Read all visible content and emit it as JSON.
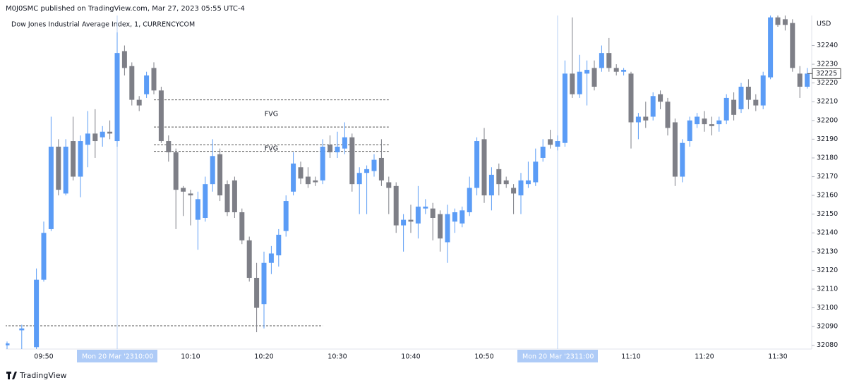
{
  "chart_data": {
    "type": "candlestick",
    "header": "M0J0SMC published on TradingView.com, Mar 27, 2023 05:55 UTC-4",
    "title": "Dow Jones Industrial Average Index, 1, CURRENCYCOM",
    "currency": "USD",
    "footer": "TradingView",
    "up_color": "#5b9cf6",
    "down_color": "#7e7f87",
    "x": [
      "09:45",
      "09:47",
      "09:49",
      "09:50",
      "09:51",
      "09:52",
      "09:53",
      "09:54",
      "09:55",
      "09:56",
      "09:57",
      "09:58",
      "09:59",
      "10:00",
      "10:01",
      "10:02",
      "10:03",
      "10:04",
      "10:05",
      "10:06",
      "10:07",
      "10:08",
      "10:09",
      "10:10",
      "10:11",
      "10:12",
      "10:13",
      "10:14",
      "10:15",
      "10:16",
      "10:17",
      "10:18",
      "10:19",
      "10:20",
      "10:21",
      "10:22",
      "10:23",
      "10:24",
      "10:25",
      "10:26",
      "10:27",
      "10:28",
      "10:29",
      "10:30",
      "10:31",
      "10:32",
      "10:33",
      "10:34",
      "10:35",
      "10:36",
      "10:37",
      "10:38",
      "10:39",
      "10:40",
      "10:41",
      "10:42",
      "10:43",
      "10:44",
      "10:45",
      "10:46",
      "10:47",
      "10:48",
      "10:49",
      "10:50",
      "10:51",
      "10:52",
      "10:53",
      "10:54",
      "10:55",
      "10:56",
      "10:57",
      "10:58",
      "10:59",
      "11:00",
      "11:01",
      "11:02",
      "11:03",
      "11:04",
      "11:05",
      "11:06",
      "11:07",
      "11:08",
      "11:09",
      "11:10",
      "11:11",
      "11:12",
      "11:13",
      "11:14",
      "11:15",
      "11:16",
      "11:17",
      "11:18",
      "11:19",
      "11:20",
      "11:21",
      "11:22",
      "11:23",
      "11:24",
      "11:25",
      "11:26",
      "11:27",
      "11:28",
      "11:29",
      "11:30",
      "11:31",
      "11:32",
      "11:33",
      "11:34"
    ],
    "open": [
      32080,
      32088,
      32079,
      32115,
      32142,
      32186,
      32161,
      32189,
      32170,
      32187,
      32193,
      32191,
      32194,
      32189,
      32237,
      32229,
      32211,
      32214,
      32228,
      32216,
      32189,
      32183,
      32164,
      32161,
      32147,
      32148,
      32166,
      32182,
      32166,
      32168,
      32151,
      32136,
      32116,
      32102,
      32124,
      32128,
      32141,
      32162,
      32175,
      32170,
      32168,
      32168,
      32187,
      32183,
      32185,
      32191,
      32166,
      32172,
      32173,
      32180,
      32167,
      32165,
      32144,
      32147,
      32145,
      32153,
      32153,
      32150,
      32135,
      32146,
      32145,
      32151,
      32164,
      32190,
      32160,
      32174,
      32168,
      32164,
      32160,
      32166,
      32167,
      32180,
      32190,
      32186,
      32188,
      32225,
      32214,
      32225,
      32228,
      32228,
      32236,
      32228,
      32226,
      32225,
      32199,
      32202,
      32202,
      32214,
      32210,
      32199,
      32170,
      32189,
      32198,
      32201,
      32198,
      32198,
      32200,
      32211,
      32206,
      32218,
      32211,
      32208,
      32223,
      32255,
      32254,
      32252,
      32225,
      32218
    ],
    "high": [
      32082,
      32091,
      32121,
      32146,
      32202,
      32190,
      32190,
      32202,
      32192,
      32205,
      32206,
      32197,
      32200,
      32247,
      32240,
      32231,
      32213,
      32226,
      32231,
      32218,
      32192,
      32185,
      32165,
      32163,
      32162,
      32170,
      32190,
      32185,
      32168,
      32170,
      32153,
      32138,
      32124,
      32130,
      32133,
      32142,
      32160,
      32183,
      32178,
      32175,
      32170,
      32190,
      32192,
      32194,
      32199,
      32193,
      32175,
      32176,
      32182,
      32190,
      32170,
      32167,
      32150,
      32155,
      32165,
      32158,
      32156,
      32152,
      32155,
      32153,
      32154,
      32170,
      32191,
      32196,
      32175,
      32177,
      32170,
      32166,
      32172,
      32178,
      32185,
      32190,
      32195,
      32192,
      32232,
      32255,
      32235,
      32232,
      32232,
      32240,
      32244,
      32230,
      32228,
      32226,
      32204,
      32210,
      32215,
      32216,
      32212,
      32201,
      32190,
      32202,
      32204,
      32205,
      32202,
      32202,
      32214,
      32215,
      32220,
      32222,
      32214,
      32226,
      32258,
      32258,
      32257,
      32254,
      32229,
      32228
    ],
    "low": [
      32078,
      32078,
      32076,
      32114,
      32141,
      32160,
      32160,
      32168,
      32159,
      32175,
      32180,
      32186,
      32190,
      32186,
      32224,
      32208,
      32205,
      32212,
      32214,
      32188,
      32178,
      32142,
      32149,
      32144,
      32131,
      32146,
      32162,
      32157,
      32149,
      32148,
      32134,
      32114,
      32087,
      32089,
      32118,
      32122,
      32138,
      32160,
      32166,
      32164,
      32165,
      32166,
      32180,
      32180,
      32182,
      32162,
      32150,
      32150,
      32170,
      32165,
      32150,
      32140,
      32130,
      32140,
      32137,
      32150,
      32136,
      32130,
      32124,
      32140,
      32143,
      32149,
      32160,
      32156,
      32152,
      32160,
      32164,
      32150,
      32150,
      32164,
      32165,
      32178,
      32185,
      32184,
      32186,
      32212,
      32212,
      32208,
      32216,
      32226,
      32226,
      32224,
      32224,
      32185,
      32190,
      32196,
      32200,
      32206,
      32192,
      32165,
      32167,
      32186,
      32196,
      32194,
      32192,
      32194,
      32198,
      32200,
      32204,
      32206,
      32205,
      32206,
      32222,
      32250,
      32248,
      32226,
      32212,
      32217
    ],
    "close": [
      32081,
      32089,
      32115,
      32140,
      32186,
      32163,
      32186,
      32170,
      32189,
      32193,
      32189,
      32194,
      32193,
      32236,
      32228,
      32211,
      32208,
      32224,
      32216,
      32189,
      32183,
      32163,
      32162,
      32160,
      32158,
      32166,
      32181,
      32160,
      32151,
      32151,
      32136,
      32116,
      32100,
      32124,
      32129,
      32139,
      32157,
      32177,
      32169,
      32166,
      32167,
      32186,
      32183,
      32186,
      32191,
      32166,
      32172,
      32174,
      32179,
      32168,
      32164,
      32144,
      32147,
      32146,
      32154,
      32154,
      32148,
      32137,
      32150,
      32151,
      32152,
      32164,
      32189,
      32160,
      32171,
      32166,
      32166,
      32161,
      32168,
      32168,
      32178,
      32186,
      32187,
      32189,
      32225,
      32214,
      32226,
      32227,
      32218,
      32236,
      32228,
      32226,
      32227,
      32199,
      32202,
      32200,
      32213,
      32210,
      32196,
      32170,
      32188,
      32200,
      32202,
      32198,
      32197,
      32200,
      32212,
      32203,
      32218,
      32211,
      32208,
      32224,
      32255,
      32251,
      32251,
      32228,
      32218,
      32225
    ],
    "xlim": [
      "09:45",
      "11:35"
    ],
    "xticks": [
      "09:50",
      "10:00",
      "10:10",
      "10:20",
      "10:30",
      "10:40",
      "10:50",
      "11:00",
      "11:10",
      "11:20",
      "11:30"
    ],
    "ylim": [
      32078,
      32256
    ],
    "yticks": [
      32080,
      32090,
      32100,
      32110,
      32120,
      32130,
      32140,
      32150,
      32160,
      32170,
      32180,
      32190,
      32200,
      32210,
      32220,
      32230,
      32240
    ],
    "session_markers": [
      {
        "date": "Mon 20 Mar '23",
        "time": "10:00"
      },
      {
        "date": "Mon 20 Mar '23",
        "time": "11:00"
      }
    ],
    "zones": [
      {
        "label": "FVG",
        "top": 32211,
        "bottom": 32196.5,
        "from": "10:05",
        "to": "10:37"
      },
      {
        "label": "FVG",
        "top": 32187,
        "bottom": 32183.5,
        "from": "10:05",
        "to": "10:37"
      }
    ],
    "levels": [
      {
        "value": 32090.4,
        "from": "09:45",
        "to": "10:28"
      }
    ]
  }
}
